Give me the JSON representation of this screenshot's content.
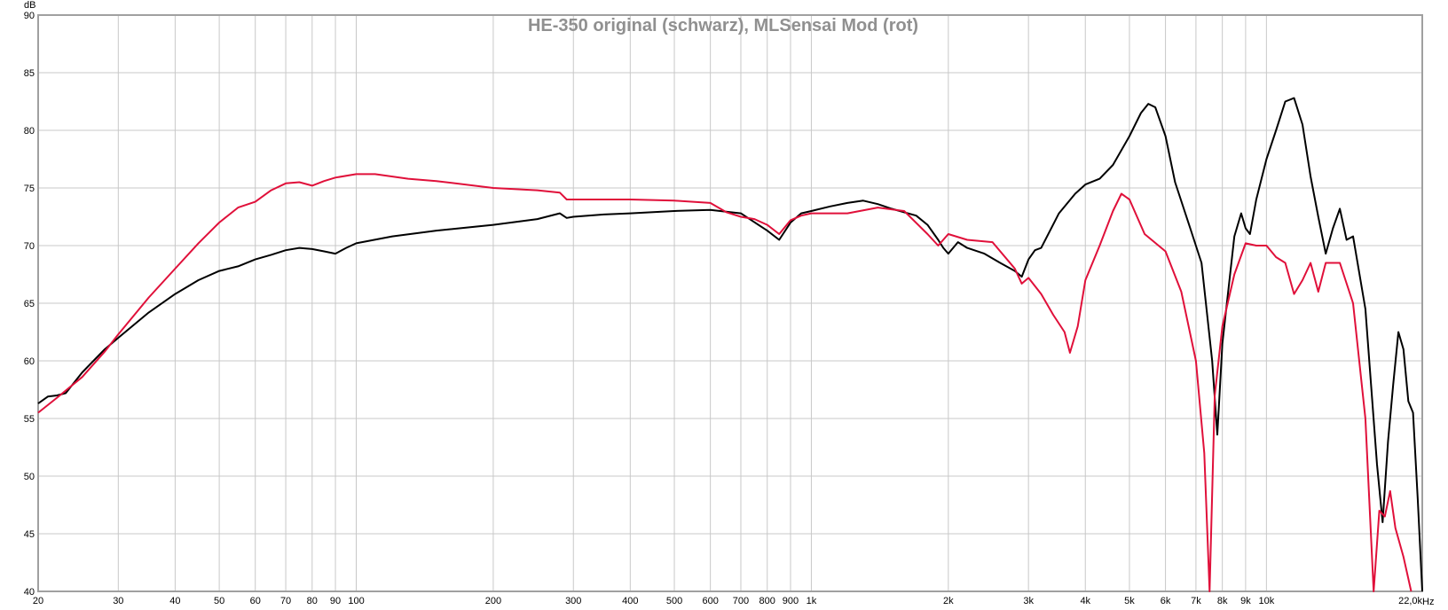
{
  "chart_data": {
    "type": "line",
    "title": "HE-350  original (schwarz), MLSensai Mod (rot)",
    "xlabel": "Hz",
    "ylabel": "dB",
    "x_scale": "log",
    "xlim": [
      20,
      22000
    ],
    "ylim": [
      40,
      90
    ],
    "grid": true,
    "legend": "none",
    "x_ticks": [
      20,
      30,
      40,
      50,
      60,
      70,
      80,
      90,
      100,
      200,
      300,
      400,
      500,
      600,
      700,
      800,
      900,
      1000,
      2000,
      3000,
      4000,
      5000,
      6000,
      7000,
      8000,
      9000,
      10000,
      22000
    ],
    "x_tick_labels": [
      "20",
      "30",
      "40",
      "50",
      "60",
      "70",
      "80",
      "90",
      "100",
      "200",
      "300",
      "400",
      "500",
      "600",
      "700",
      "800",
      "900",
      "1k",
      "2k",
      "3k",
      "4k",
      "5k",
      "6k",
      "7k",
      "8k",
      "9k",
      "10k",
      "22,0k"
    ],
    "y_ticks": [
      40,
      45,
      50,
      55,
      60,
      65,
      70,
      75,
      80,
      85,
      90
    ],
    "y_tick_labels": [
      "40",
      "45",
      "50",
      "55",
      "60",
      "65",
      "70",
      "75",
      "80",
      "85",
      "90"
    ],
    "series": [
      {
        "color": "#000000",
        "points": [
          [
            20,
            56.3
          ],
          [
            21,
            56.9
          ],
          [
            22,
            57.0
          ],
          [
            23,
            57.2
          ],
          [
            25,
            59.0
          ],
          [
            28,
            61.0
          ],
          [
            30,
            62.0
          ],
          [
            35,
            64.2
          ],
          [
            40,
            65.8
          ],
          [
            45,
            67.0
          ],
          [
            50,
            67.8
          ],
          [
            55,
            68.2
          ],
          [
            60,
            68.8
          ],
          [
            65,
            69.2
          ],
          [
            70,
            69.6
          ],
          [
            75,
            69.8
          ],
          [
            80,
            69.7
          ],
          [
            85,
            69.5
          ],
          [
            90,
            69.3
          ],
          [
            95,
            69.8
          ],
          [
            100,
            70.2
          ],
          [
            120,
            70.8
          ],
          [
            150,
            71.3
          ],
          [
            200,
            71.8
          ],
          [
            250,
            72.3
          ],
          [
            280,
            72.8
          ],
          [
            290,
            72.4
          ],
          [
            300,
            72.5
          ],
          [
            350,
            72.7
          ],
          [
            400,
            72.8
          ],
          [
            500,
            73.0
          ],
          [
            600,
            73.1
          ],
          [
            700,
            72.8
          ],
          [
            800,
            71.3
          ],
          [
            850,
            70.5
          ],
          [
            900,
            72.0
          ],
          [
            950,
            72.8
          ],
          [
            1000,
            73.0
          ],
          [
            1100,
            73.4
          ],
          [
            1200,
            73.7
          ],
          [
            1300,
            73.9
          ],
          [
            1400,
            73.6
          ],
          [
            1500,
            73.2
          ],
          [
            1700,
            72.6
          ],
          [
            1800,
            71.8
          ],
          [
            1900,
            70.5
          ],
          [
            1950,
            69.8
          ],
          [
            2000,
            69.3
          ],
          [
            2100,
            70.3
          ],
          [
            2200,
            69.8
          ],
          [
            2400,
            69.3
          ],
          [
            2600,
            68.5
          ],
          [
            2800,
            67.8
          ],
          [
            2900,
            67.3
          ],
          [
            3000,
            68.8
          ],
          [
            3100,
            69.6
          ],
          [
            3200,
            69.8
          ],
          [
            3500,
            72.8
          ],
          [
            3800,
            74.5
          ],
          [
            4000,
            75.3
          ],
          [
            4300,
            75.8
          ],
          [
            4600,
            77.0
          ],
          [
            5000,
            79.5
          ],
          [
            5300,
            81.5
          ],
          [
            5500,
            82.3
          ],
          [
            5700,
            82.0
          ],
          [
            6000,
            79.5
          ],
          [
            6300,
            75.5
          ],
          [
            6800,
            71.5
          ],
          [
            7200,
            68.5
          ],
          [
            7600,
            60.0
          ],
          [
            7800,
            53.6
          ],
          [
            8000,
            61.5
          ],
          [
            8500,
            70.8
          ],
          [
            8800,
            72.8
          ],
          [
            9000,
            71.5
          ],
          [
            9200,
            71.0
          ],
          [
            9500,
            74.0
          ],
          [
            10000,
            77.5
          ],
          [
            10500,
            80.0
          ],
          [
            11000,
            82.5
          ],
          [
            11500,
            82.8
          ],
          [
            12000,
            80.5
          ],
          [
            12500,
            76.0
          ],
          [
            13000,
            72.5
          ],
          [
            13500,
            69.3
          ],
          [
            14000,
            71.5
          ],
          [
            14500,
            73.2
          ],
          [
            15000,
            70.5
          ],
          [
            15500,
            70.8
          ],
          [
            16500,
            64.5
          ],
          [
            17500,
            51.0
          ],
          [
            18000,
            46.0
          ],
          [
            18500,
            53.0
          ],
          [
            19000,
            58.0
          ],
          [
            19500,
            62.5
          ],
          [
            20000,
            61.0
          ],
          [
            20500,
            56.5
          ],
          [
            21000,
            55.5
          ],
          [
            21500,
            48.0
          ],
          [
            22000,
            40.0
          ]
        ]
      },
      {
        "color": "#e0103a",
        "points": [
          [
            20,
            55.5
          ],
          [
            22,
            56.8
          ],
          [
            25,
            58.6
          ],
          [
            28,
            60.8
          ],
          [
            30,
            62.3
          ],
          [
            35,
            65.5
          ],
          [
            40,
            68.0
          ],
          [
            45,
            70.2
          ],
          [
            50,
            72.0
          ],
          [
            55,
            73.3
          ],
          [
            60,
            73.8
          ],
          [
            65,
            74.8
          ],
          [
            70,
            75.4
          ],
          [
            75,
            75.5
          ],
          [
            80,
            75.2
          ],
          [
            85,
            75.6
          ],
          [
            90,
            75.9
          ],
          [
            100,
            76.2
          ],
          [
            110,
            76.2
          ],
          [
            130,
            75.8
          ],
          [
            150,
            75.6
          ],
          [
            200,
            75.0
          ],
          [
            250,
            74.8
          ],
          [
            280,
            74.6
          ],
          [
            290,
            74.0
          ],
          [
            300,
            74.0
          ],
          [
            400,
            74.0
          ],
          [
            500,
            73.9
          ],
          [
            600,
            73.7
          ],
          [
            650,
            72.9
          ],
          [
            700,
            72.5
          ],
          [
            750,
            72.3
          ],
          [
            800,
            71.8
          ],
          [
            850,
            71.0
          ],
          [
            900,
            72.2
          ],
          [
            950,
            72.6
          ],
          [
            1000,
            72.8
          ],
          [
            1200,
            72.8
          ],
          [
            1400,
            73.3
          ],
          [
            1600,
            73.0
          ],
          [
            1800,
            71.0
          ],
          [
            1900,
            70.0
          ],
          [
            2000,
            71.0
          ],
          [
            2200,
            70.5
          ],
          [
            2500,
            70.3
          ],
          [
            2800,
            68.0
          ],
          [
            2900,
            66.7
          ],
          [
            3000,
            67.2
          ],
          [
            3200,
            65.8
          ],
          [
            3400,
            64.0
          ],
          [
            3600,
            62.5
          ],
          [
            3700,
            60.7
          ],
          [
            3850,
            63.0
          ],
          [
            4000,
            67.0
          ],
          [
            4300,
            70.0
          ],
          [
            4600,
            73.0
          ],
          [
            4800,
            74.5
          ],
          [
            5000,
            74.0
          ],
          [
            5400,
            71.0
          ],
          [
            6000,
            69.5
          ],
          [
            6500,
            66.0
          ],
          [
            7000,
            60.0
          ],
          [
            7300,
            52.0
          ],
          [
            7500,
            40.0
          ],
          [
            7700,
            57.0
          ],
          [
            8000,
            63.0
          ],
          [
            8500,
            67.5
          ],
          [
            9000,
            70.2
          ],
          [
            9500,
            70.0
          ],
          [
            10000,
            70.0
          ],
          [
            10500,
            69.0
          ],
          [
            11000,
            68.5
          ],
          [
            11500,
            65.8
          ],
          [
            12000,
            67.0
          ],
          [
            12500,
            68.5
          ],
          [
            13000,
            66.0
          ],
          [
            13500,
            68.5
          ],
          [
            14500,
            68.5
          ],
          [
            15500,
            65.0
          ],
          [
            16500,
            55.0
          ],
          [
            17200,
            40.0
          ],
          [
            17700,
            47.0
          ],
          [
            18200,
            46.5
          ],
          [
            18700,
            48.7
          ],
          [
            19200,
            45.5
          ],
          [
            20000,
            43.0
          ],
          [
            20800,
            40.0
          ]
        ]
      }
    ]
  }
}
